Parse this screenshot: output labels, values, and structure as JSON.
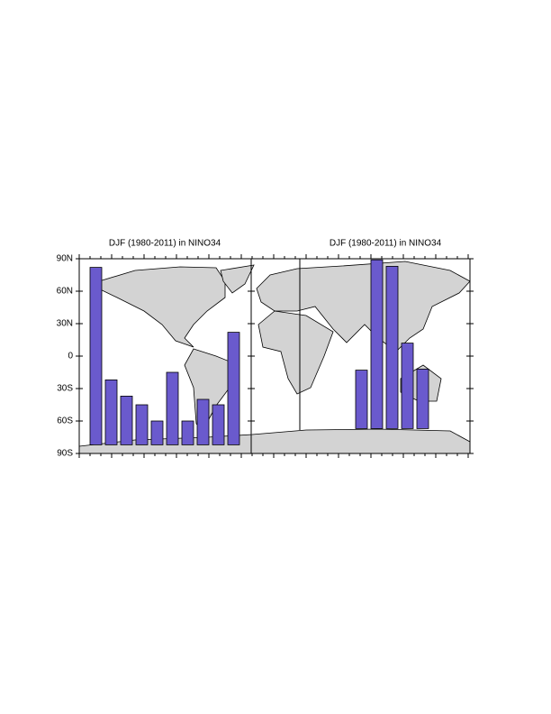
{
  "chart_data": [
    {
      "type": "bar",
      "title": "DJF (1980-2011) in NINO34",
      "color": "#6a5acd",
      "categories": [
        null,
        null,
        null,
        null,
        null,
        null,
        null,
        null,
        null,
        null
      ],
      "values": [
        82,
        -22,
        -37,
        -45,
        -60,
        -15,
        -60,
        -40,
        -45,
        22
      ],
      "base": -82,
      "ylim": [
        -90,
        90
      ],
      "yticks": [
        {
          "value": 90,
          "label": "90N"
        },
        {
          "value": 60,
          "label": "60N"
        },
        {
          "value": 30,
          "label": "30N"
        },
        {
          "value": 0,
          "label": "0"
        },
        {
          "value": -30,
          "label": "30S"
        },
        {
          "value": -60,
          "label": "60S"
        },
        {
          "value": -90,
          "label": "90S"
        }
      ]
    },
    {
      "type": "bar",
      "title": "DJF (1980-2011) in NINO34",
      "color": "#6a5acd",
      "categories": [
        null,
        null,
        null,
        null,
        null
      ],
      "values": [
        -13,
        89,
        83,
        12,
        -12
      ],
      "base": -67,
      "ylim": [
        -90,
        90
      ],
      "yticks": [
        90,
        60,
        30,
        0,
        -30,
        -60,
        -90
      ]
    }
  ]
}
